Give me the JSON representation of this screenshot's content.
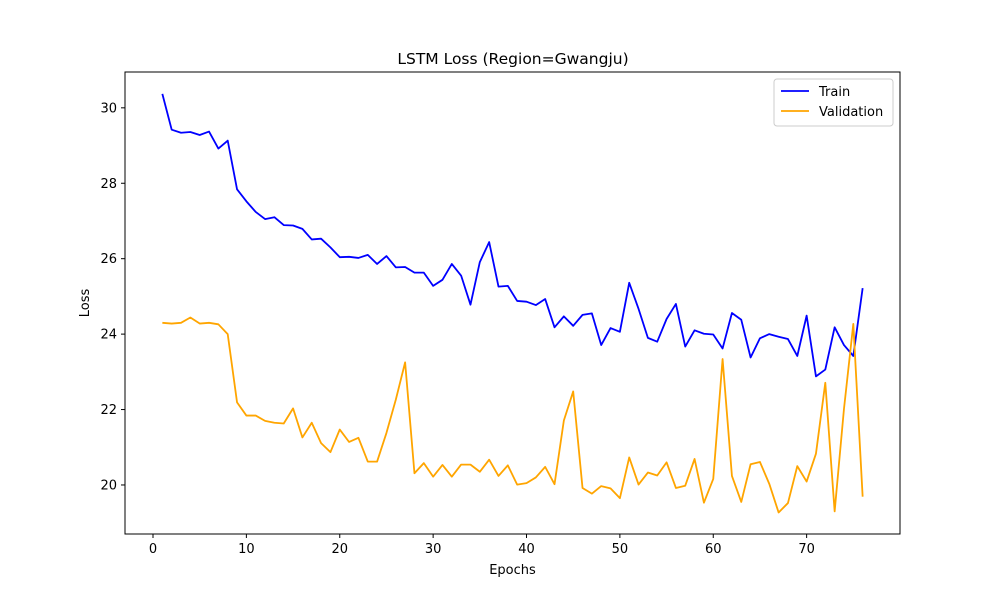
{
  "chart_data": {
    "type": "line",
    "title": "LSTM Loss (Region=Gwangju)",
    "xlabel": "Epochs",
    "ylabel": "Loss",
    "xlim": [
      -3,
      80
    ],
    "ylim": [
      18.7,
      30.95
    ],
    "xticks": [
      0,
      10,
      20,
      30,
      40,
      50,
      60,
      70
    ],
    "yticks": [
      20,
      22,
      24,
      26,
      28,
      30
    ],
    "grid": false,
    "legend_position": "upper right",
    "x": [
      1,
      2,
      3,
      4,
      5,
      6,
      7,
      8,
      9,
      10,
      11,
      12,
      13,
      14,
      15,
      16,
      17,
      18,
      19,
      20,
      21,
      22,
      23,
      24,
      25,
      26,
      27,
      28,
      29,
      30,
      31,
      32,
      33,
      34,
      35,
      36,
      37,
      38,
      39,
      40,
      41,
      42,
      43,
      44,
      45,
      46,
      47,
      48,
      49,
      50,
      51,
      52,
      53,
      54,
      55,
      56,
      57,
      58,
      59,
      60,
      61,
      62,
      63,
      64,
      65,
      66,
      67,
      68,
      69,
      70,
      71,
      72,
      73,
      74,
      75,
      76
    ],
    "series": [
      {
        "name": "Train",
        "color": "#0000ff",
        "values": [
          30.37,
          29.42,
          29.34,
          29.36,
          29.28,
          29.37,
          28.92,
          29.13,
          27.84,
          27.52,
          27.24,
          27.05,
          27.1,
          26.89,
          26.88,
          26.79,
          26.51,
          26.53,
          26.3,
          26.04,
          26.05,
          26.02,
          26.1,
          25.86,
          26.07,
          25.77,
          25.78,
          25.63,
          25.63,
          25.28,
          25.44,
          25.86,
          25.55,
          24.78,
          25.91,
          26.44,
          25.26,
          25.28,
          24.88,
          24.86,
          24.77,
          24.93,
          24.18,
          24.47,
          24.22,
          24.51,
          24.55,
          23.71,
          24.16,
          24.06,
          25.36,
          24.67,
          23.9,
          23.8,
          24.4,
          24.8,
          23.67,
          24.1,
          24.01,
          23.99,
          23.62,
          24.56,
          24.38,
          23.38,
          23.89,
          24.0,
          23.93,
          23.87,
          23.42,
          24.49,
          22.88,
          23.06,
          24.18,
          23.71,
          23.42,
          25.22
        ]
      },
      {
        "name": "Validation",
        "color": "#ffa500",
        "values": [
          24.3,
          24.28,
          24.3,
          24.44,
          24.28,
          24.3,
          24.26,
          24.0,
          22.19,
          21.84,
          21.84,
          21.7,
          21.65,
          21.63,
          22.03,
          21.26,
          21.65,
          21.11,
          20.87,
          21.47,
          21.14,
          21.25,
          20.62,
          20.62,
          21.38,
          22.26,
          23.25,
          20.31,
          20.58,
          20.22,
          20.53,
          20.22,
          20.54,
          20.54,
          20.35,
          20.67,
          20.24,
          20.52,
          20.01,
          20.05,
          20.2,
          20.48,
          20.02,
          21.71,
          22.48,
          19.92,
          19.77,
          19.97,
          19.91,
          19.65,
          20.73,
          20.01,
          20.33,
          20.25,
          20.6,
          19.92,
          19.98,
          20.69,
          19.53,
          20.16,
          23.34,
          20.24,
          19.55,
          20.55,
          20.61,
          20.03,
          19.27,
          19.52,
          20.5,
          20.09,
          20.83,
          22.71,
          19.3,
          22.02,
          24.27,
          19.69
        ]
      }
    ]
  }
}
